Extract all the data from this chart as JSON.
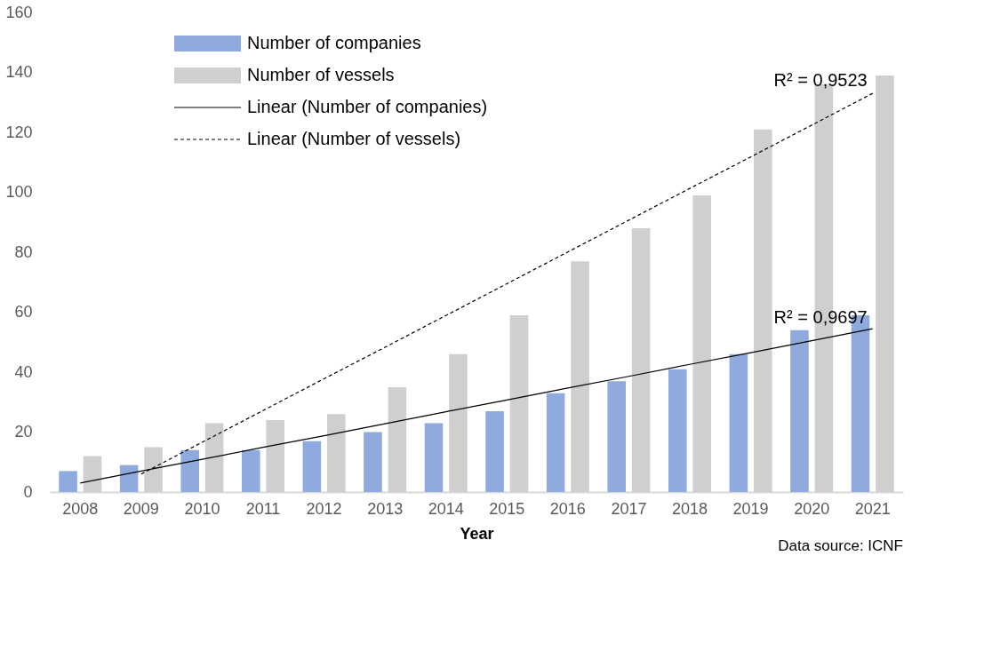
{
  "chart_data": {
    "type": "bar",
    "xlabel": "Year",
    "categories": [
      "2008",
      "2009",
      "2010",
      "2011",
      "2012",
      "2013",
      "2014",
      "2015",
      "2016",
      "2017",
      "2018",
      "2019",
      "2020",
      "2021"
    ],
    "series": [
      {
        "name": "Number of companies",
        "color": "#8faadc",
        "values": [
          7,
          9,
          14,
          14,
          17,
          20,
          23,
          27,
          33,
          37,
          41,
          46,
          54,
          59
        ]
      },
      {
        "name": "Number of vessels",
        "color": "#d0cece",
        "values": [
          12,
          15,
          23,
          24,
          26,
          35,
          46,
          59,
          77,
          88,
          99,
          121,
          136,
          139
        ]
      },
      {
        "name": "Linear (Number of companies)",
        "type": "line",
        "line_style": "solid",
        "color": "#000000",
        "values": [
          3,
          7,
          10.9,
          14.9,
          18.8,
          22.8,
          26.8,
          30.7,
          34.7,
          38.6,
          42.6,
          46.5,
          50.5,
          54.5
        ]
      },
      {
        "name": "Linear (Number of vessels)",
        "type": "line",
        "line_style": "dashed",
        "color": "#000000",
        "values": [
          null,
          6,
          16.6,
          27.2,
          37.8,
          48.3,
          58.9,
          69.5,
          80.1,
          90.7,
          101.3,
          111.8,
          122.4,
          133
        ]
      }
    ],
    "ylim": [
      0,
      160
    ],
    "yticks": [
      0,
      20,
      40,
      60,
      80,
      100,
      120,
      140,
      160
    ],
    "grid": false,
    "legend": "top left",
    "annotations": [
      {
        "text": "R² = 0,9523",
        "x": "2020",
        "y": 133
      },
      {
        "text": "R² = 0,9697",
        "x": "2020",
        "y": 54
      },
      "Data source: ICNF"
    ]
  }
}
